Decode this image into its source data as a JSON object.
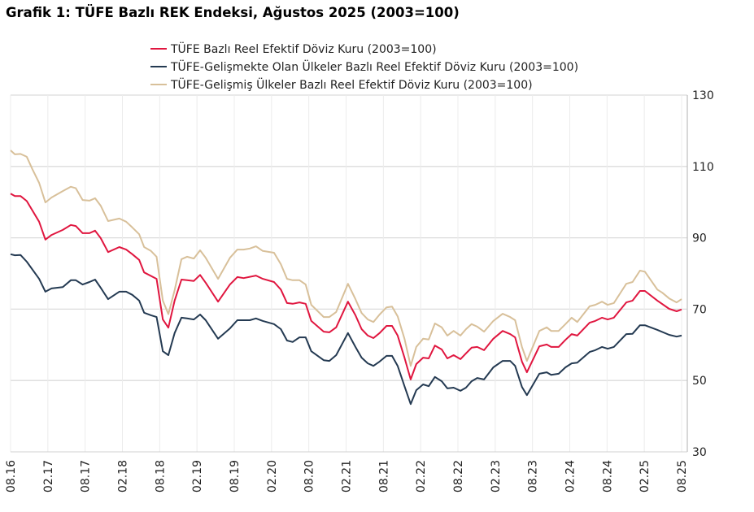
{
  "chart_data": {
    "type": "line",
    "title": "Grafik 1: TÜFE Bazlı REK Endeksi, Ağustos 2025 (2003=100)",
    "xlabel": "",
    "ylabel": "",
    "x_unit": "months since 08.16",
    "xlim": [
      0,
      108
    ],
    "ylim": [
      30,
      130
    ],
    "yticks": [
      30,
      50,
      70,
      90,
      110,
      130
    ],
    "xtick_labels": [
      "08.16",
      "02.17",
      "08.17",
      "02.18",
      "08.18",
      "02.19",
      "08.19",
      "02.20",
      "08.20",
      "02.21",
      "08.21",
      "02.22",
      "08.22",
      "02.23",
      "08.23",
      "02.24",
      "08.24",
      "02.25",
      "08.25"
    ],
    "grid": true,
    "legend_placement": "top-center",
    "series": [
      {
        "name": "TÜFE  Bazlı Reel Efektif Döviz Kuru (2003=100)",
        "color": "#e0163f",
        "points": [
          [
            0,
            102.4
          ],
          [
            0.7,
            101.7
          ],
          [
            1.6,
            101.7
          ],
          [
            2.6,
            100.3
          ],
          [
            4.6,
            94.5
          ],
          [
            5.6,
            89.5
          ],
          [
            6.6,
            90.8
          ],
          [
            8.4,
            92.2
          ],
          [
            9.7,
            93.6
          ],
          [
            10.5,
            93.3
          ],
          [
            11.6,
            91.3
          ],
          [
            12.7,
            91.3
          ],
          [
            13.6,
            92
          ],
          [
            14.5,
            89.9
          ],
          [
            15.7,
            86
          ],
          [
            17.5,
            87.4
          ],
          [
            18.6,
            86.7
          ],
          [
            19.6,
            85.4
          ],
          [
            20.7,
            83.8
          ],
          [
            21.5,
            80.3
          ],
          [
            23.5,
            78.5
          ],
          [
            24.5,
            67.1
          ],
          [
            25.4,
            64.8
          ],
          [
            26.4,
            72.4
          ],
          [
            27.5,
            78.3
          ],
          [
            28.4,
            78.1
          ],
          [
            29.5,
            77.9
          ],
          [
            30.5,
            79.6
          ],
          [
            31.4,
            77.4
          ],
          [
            33.4,
            72.1
          ],
          [
            35.3,
            76.9
          ],
          [
            36.5,
            79
          ],
          [
            37.5,
            78.7
          ],
          [
            39.5,
            79.4
          ],
          [
            40.6,
            78.5
          ],
          [
            42.4,
            77.6
          ],
          [
            43.5,
            75.5
          ],
          [
            44.5,
            71.7
          ],
          [
            45.4,
            71.5
          ],
          [
            46.5,
            71.9
          ],
          [
            47.5,
            71.5
          ],
          [
            48.4,
            66.7
          ],
          [
            50.4,
            63.7
          ],
          [
            51.3,
            63.5
          ],
          [
            52.4,
            64.9
          ],
          [
            54.3,
            72.1
          ],
          [
            55.5,
            68.3
          ],
          [
            56.5,
            64.4
          ],
          [
            57.5,
            62.6
          ],
          [
            58.4,
            61.9
          ],
          [
            59.4,
            63.3
          ],
          [
            60.5,
            65.3
          ],
          [
            61.4,
            65.3
          ],
          [
            62.3,
            62.6
          ],
          [
            63.4,
            56.4
          ],
          [
            64.4,
            50.3
          ],
          [
            65.3,
            54.6
          ],
          [
            66.4,
            56.4
          ],
          [
            67.3,
            56.2
          ],
          [
            68.3,
            59.8
          ],
          [
            69.4,
            58.7
          ],
          [
            70.3,
            56.2
          ],
          [
            71.3,
            57.1
          ],
          [
            72.4,
            56
          ],
          [
            73.3,
            57.6
          ],
          [
            74.2,
            59.2
          ],
          [
            75.1,
            59.4
          ],
          [
            76.2,
            58.5
          ],
          [
            77.7,
            61.7
          ],
          [
            79.2,
            63.9
          ],
          [
            80.4,
            63
          ],
          [
            81.2,
            62.1
          ],
          [
            82.3,
            55.3
          ],
          [
            83.1,
            52.3
          ],
          [
            85.1,
            59.6
          ],
          [
            86.3,
            60.1
          ],
          [
            87,
            59.4
          ],
          [
            88.2,
            59.4
          ],
          [
            89.3,
            61.4
          ],
          [
            90.3,
            63
          ],
          [
            91.2,
            62.6
          ],
          [
            93.2,
            66.2
          ],
          [
            94.1,
            66.7
          ],
          [
            95.2,
            67.6
          ],
          [
            96.1,
            67.1
          ],
          [
            97.1,
            67.6
          ],
          [
            99.1,
            71.9
          ],
          [
            100.1,
            72.4
          ],
          [
            101.3,
            75.1
          ],
          [
            102.1,
            75.1
          ],
          [
            104.1,
            72.4
          ],
          [
            106,
            70.1
          ],
          [
            107.2,
            69.4
          ],
          [
            108,
            69.9
          ]
        ]
      },
      {
        "name": "TÜFE-Gelişmekte Olan Ülkeler Bazlı Reel Efektif Döviz Kuru (2003=100)",
        "color": "#243a52",
        "points": [
          [
            0,
            85.4
          ],
          [
            0.7,
            85.1
          ],
          [
            1.6,
            85.2
          ],
          [
            2.6,
            83.3
          ],
          [
            4.6,
            78.5
          ],
          [
            5.6,
            74.9
          ],
          [
            6.6,
            75.8
          ],
          [
            8.4,
            76.2
          ],
          [
            9.7,
            78.1
          ],
          [
            10.5,
            78.1
          ],
          [
            11.6,
            76.9
          ],
          [
            12.7,
            77.6
          ],
          [
            13.6,
            78.3
          ],
          [
            14.5,
            76
          ],
          [
            15.7,
            72.8
          ],
          [
            17.5,
            74.9
          ],
          [
            18.6,
            74.9
          ],
          [
            19.6,
            74
          ],
          [
            20.7,
            72.4
          ],
          [
            21.5,
            69
          ],
          [
            22.6,
            68.3
          ],
          [
            23.5,
            67.8
          ],
          [
            24.5,
            58.2
          ],
          [
            25.4,
            57.1
          ],
          [
            26.4,
            63.3
          ],
          [
            27.5,
            67.6
          ],
          [
            28.4,
            67.4
          ],
          [
            29.5,
            67.1
          ],
          [
            30.5,
            68.5
          ],
          [
            31.4,
            66.9
          ],
          [
            33.4,
            61.7
          ],
          [
            35.3,
            64.6
          ],
          [
            36.5,
            66.9
          ],
          [
            38.5,
            66.9
          ],
          [
            39.5,
            67.4
          ],
          [
            40.6,
            66.7
          ],
          [
            42.4,
            65.8
          ],
          [
            43.5,
            64.4
          ],
          [
            44.5,
            61.2
          ],
          [
            45.4,
            60.8
          ],
          [
            46.5,
            62.1
          ],
          [
            47.5,
            62.1
          ],
          [
            48.4,
            58.2
          ],
          [
            50.4,
            55.7
          ],
          [
            51.3,
            55.5
          ],
          [
            52.4,
            57.1
          ],
          [
            54.3,
            63.3
          ],
          [
            55.5,
            59.4
          ],
          [
            56.5,
            56.4
          ],
          [
            57.5,
            54.8
          ],
          [
            58.4,
            54.1
          ],
          [
            59.4,
            55.3
          ],
          [
            60.5,
            56.9
          ],
          [
            61.4,
            56.9
          ],
          [
            62.3,
            54.1
          ],
          [
            63.4,
            48.4
          ],
          [
            64.4,
            43.4
          ],
          [
            65.3,
            47.3
          ],
          [
            66.4,
            48.9
          ],
          [
            67.3,
            48.4
          ],
          [
            68.3,
            51
          ],
          [
            69.4,
            49.8
          ],
          [
            70.3,
            47.8
          ],
          [
            71.3,
            48
          ],
          [
            72.4,
            47.1
          ],
          [
            73.3,
            48
          ],
          [
            74.2,
            49.8
          ],
          [
            75.1,
            50.7
          ],
          [
            76.2,
            50.3
          ],
          [
            77.7,
            53.7
          ],
          [
            79.2,
            55.5
          ],
          [
            80.4,
            55.5
          ],
          [
            81.2,
            54.1
          ],
          [
            82.3,
            48.2
          ],
          [
            83.1,
            45.9
          ],
          [
            85.1,
            51.9
          ],
          [
            86.3,
            52.3
          ],
          [
            87,
            51.6
          ],
          [
            88.2,
            51.9
          ],
          [
            89.3,
            53.7
          ],
          [
            90.3,
            54.8
          ],
          [
            91.2,
            55
          ],
          [
            93.2,
            58
          ],
          [
            94.1,
            58.5
          ],
          [
            95.2,
            59.4
          ],
          [
            96.1,
            58.9
          ],
          [
            97.1,
            59.4
          ],
          [
            99.1,
            63
          ],
          [
            100.1,
            63.1
          ],
          [
            101.3,
            65.5
          ],
          [
            102.1,
            65.5
          ],
          [
            104.1,
            64.2
          ],
          [
            106,
            62.8
          ],
          [
            107.2,
            62.3
          ],
          [
            108,
            62.6
          ]
        ]
      },
      {
        "name": "TÜFE-Gelişmiş Ülkeler Bazlı Reel Efektif Döviz Kuru (2003=100)",
        "color": "#d8c09a",
        "points": [
          [
            0,
            114.5
          ],
          [
            0.7,
            113.4
          ],
          [
            1.6,
            113.5
          ],
          [
            2.6,
            112.7
          ],
          [
            3.5,
            109.3
          ],
          [
            4.6,
            105.4
          ],
          [
            5.6,
            99.9
          ],
          [
            6.6,
            101.3
          ],
          [
            8.4,
            103.1
          ],
          [
            9.7,
            104.3
          ],
          [
            10.5,
            103.9
          ],
          [
            11.6,
            100.6
          ],
          [
            12.7,
            100.4
          ],
          [
            13.6,
            101.1
          ],
          [
            14.5,
            99
          ],
          [
            15.7,
            94.7
          ],
          [
            17.5,
            95.4
          ],
          [
            18.6,
            94.5
          ],
          [
            19.6,
            92.9
          ],
          [
            20.7,
            91
          ],
          [
            21.5,
            87.4
          ],
          [
            22.6,
            86.3
          ],
          [
            23.5,
            84.7
          ],
          [
            24.5,
            72.4
          ],
          [
            25.4,
            68.6
          ],
          [
            26.4,
            75.3
          ],
          [
            27.5,
            84
          ],
          [
            28.4,
            84.7
          ],
          [
            29.5,
            84.2
          ],
          [
            30.5,
            86.5
          ],
          [
            31.4,
            84.4
          ],
          [
            33.4,
            78.5
          ],
          [
            35.3,
            84.4
          ],
          [
            36.5,
            86.7
          ],
          [
            37.5,
            86.7
          ],
          [
            38.5,
            87
          ],
          [
            39.5,
            87.6
          ],
          [
            40.6,
            86.3
          ],
          [
            42.4,
            85.8
          ],
          [
            43.5,
            82.6
          ],
          [
            44.5,
            78.5
          ],
          [
            45.4,
            78.1
          ],
          [
            46.5,
            78.1
          ],
          [
            47.5,
            76.9
          ],
          [
            48.4,
            71.2
          ],
          [
            50.4,
            67.8
          ],
          [
            51.3,
            67.8
          ],
          [
            52.4,
            69.2
          ],
          [
            54.3,
            77.1
          ],
          [
            55.5,
            72.8
          ],
          [
            56.5,
            68.9
          ],
          [
            57.5,
            67.1
          ],
          [
            58.4,
            66.4
          ],
          [
            59.4,
            68.5
          ],
          [
            60.5,
            70.5
          ],
          [
            61.4,
            70.7
          ],
          [
            62.3,
            68
          ],
          [
            63.4,
            61.7
          ],
          [
            64.4,
            54.1
          ],
          [
            65.3,
            59.4
          ],
          [
            66.4,
            61.7
          ],
          [
            67.3,
            61.5
          ],
          [
            68.3,
            66
          ],
          [
            69.4,
            64.9
          ],
          [
            70.3,
            62.6
          ],
          [
            71.3,
            63.9
          ],
          [
            72.4,
            62.6
          ],
          [
            73.3,
            64.4
          ],
          [
            74.2,
            65.8
          ],
          [
            75.1,
            65.1
          ],
          [
            76.2,
            63.7
          ],
          [
            77.7,
            66.7
          ],
          [
            79.2,
            68.7
          ],
          [
            80.4,
            67.8
          ],
          [
            81.2,
            66.9
          ],
          [
            82.3,
            59.4
          ],
          [
            83.1,
            55.5
          ],
          [
            85.1,
            63.9
          ],
          [
            86.3,
            64.9
          ],
          [
            87,
            63.9
          ],
          [
            88.2,
            63.9
          ],
          [
            89.3,
            65.8
          ],
          [
            90.3,
            67.6
          ],
          [
            91.2,
            66.4
          ],
          [
            93.2,
            70.8
          ],
          [
            94.1,
            71.2
          ],
          [
            95.2,
            72.1
          ],
          [
            96.1,
            71.2
          ],
          [
            97.1,
            71.7
          ],
          [
            99.1,
            77.1
          ],
          [
            100.1,
            77.6
          ],
          [
            101.3,
            80.8
          ],
          [
            102.1,
            80.5
          ],
          [
            104.1,
            75.5
          ],
          [
            104.9,
            74.6
          ],
          [
            106,
            73
          ],
          [
            107.2,
            71.9
          ],
          [
            108,
            72.8
          ]
        ]
      }
    ]
  }
}
